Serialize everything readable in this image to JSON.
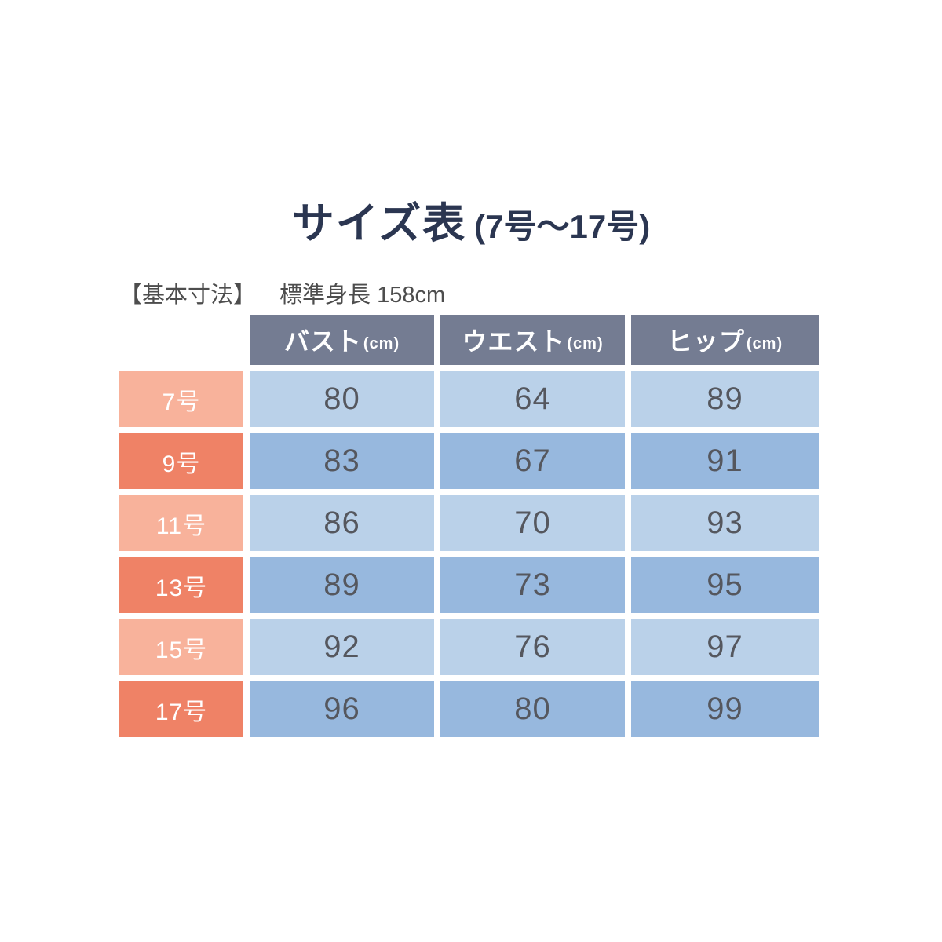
{
  "title": {
    "main": "サイズ表",
    "range": "(7号〜17号)"
  },
  "subtitle": {
    "label": "【基本寸法】",
    "text": "標準身長 158cm"
  },
  "table": {
    "columns": [
      {
        "name": "バスト",
        "unit": "(cm)"
      },
      {
        "name": "ウエスト",
        "unit": "(cm)"
      },
      {
        "name": "ヒップ",
        "unit": "(cm)"
      }
    ],
    "rows": [
      {
        "label": "7号",
        "values": [
          "80",
          "64",
          "89"
        ]
      },
      {
        "label": "9号",
        "values": [
          "83",
          "67",
          "91"
        ]
      },
      {
        "label": "11号",
        "values": [
          "86",
          "70",
          "93"
        ]
      },
      {
        "label": "13号",
        "values": [
          "89",
          "73",
          "95"
        ]
      },
      {
        "label": "15号",
        "values": [
          "92",
          "76",
          "97"
        ]
      },
      {
        "label": "17号",
        "values": [
          "96",
          "80",
          "99"
        ]
      }
    ]
  },
  "colors": {
    "title_navy": "#2b3651",
    "subtitle_gray": "#4d4d4d",
    "header_bg": "#747c92",
    "row_light_blue": "#bad1e9",
    "row_medium_blue": "#97b8de",
    "label_light_salmon": "#f8b29b",
    "label_dark_salmon": "#ef8266",
    "cell_text": "#55575e",
    "background": "#ffffff"
  },
  "chart_data": {
    "type": "table",
    "title": "サイズ表 (7号〜17号)",
    "subtitle": "【基本寸法】 標準身長 158cm",
    "columns": [
      "バスト(cm)",
      "ウエスト(cm)",
      "ヒップ(cm)"
    ],
    "row_labels": [
      "7号",
      "9号",
      "11号",
      "13号",
      "15号",
      "17号"
    ],
    "values": [
      [
        80,
        64,
        89
      ],
      [
        83,
        67,
        91
      ],
      [
        86,
        70,
        93
      ],
      [
        89,
        73,
        95
      ],
      [
        92,
        76,
        97
      ],
      [
        96,
        80,
        99
      ]
    ]
  }
}
